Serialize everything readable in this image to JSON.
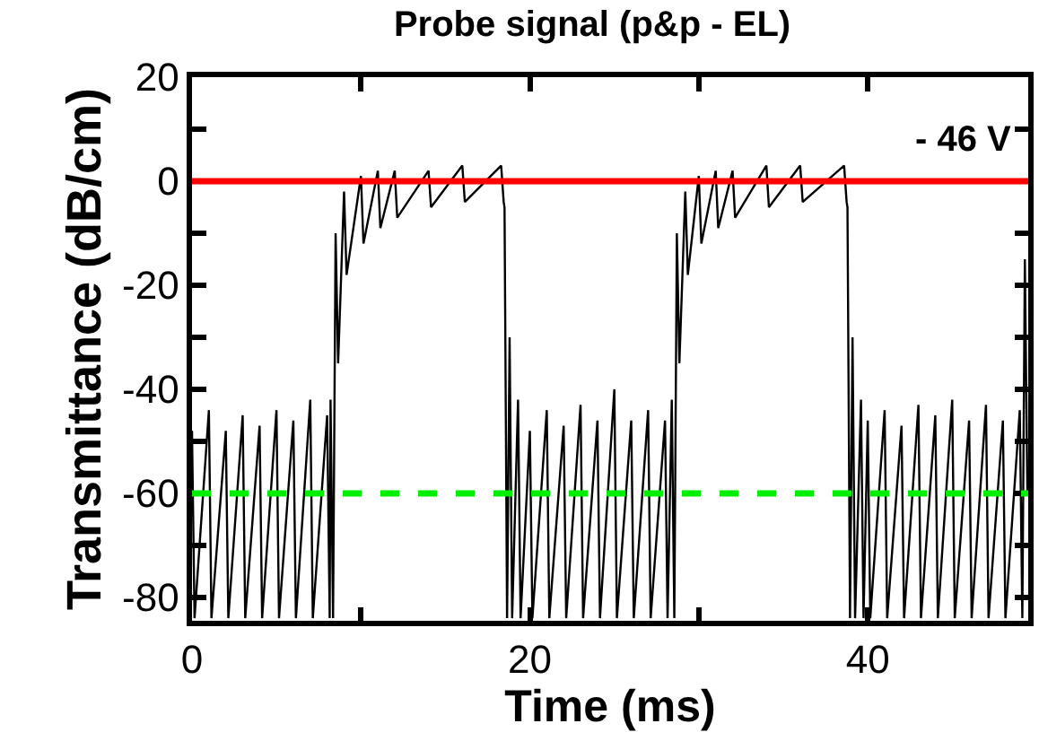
{
  "chart_data": {
    "type": "line",
    "title": "Probe signal (p&p - EL)",
    "xlabel": "Time (ms)",
    "ylabel": "Transmittance (dB/cm)",
    "x": [
      0,
      0.15,
      1,
      1.15,
      2,
      2.15,
      3,
      3.15,
      4,
      4.15,
      5,
      5.15,
      6,
      6.15,
      7,
      7.15,
      8,
      8.15,
      8.2,
      8.35,
      8.5,
      8.65,
      9,
      9.15,
      10,
      10.15,
      11,
      11.15,
      12,
      12.15,
      14,
      14.15,
      16,
      16.15,
      18.3,
      18.45,
      18.5,
      18.65,
      18.8,
      18.95,
      19.3,
      19.45,
      20,
      20.15,
      21,
      21.15,
      22,
      22.15,
      23,
      23.15,
      24,
      24.15,
      25,
      25.15,
      26,
      26.15,
      27,
      27.15,
      28,
      28.15,
      28.4,
      28.55,
      28.7,
      28.85,
      29.2,
      29.35,
      30,
      30.15,
      31,
      31.15,
      32,
      32.15,
      34,
      34.15,
      36,
      36.15,
      38.6,
      38.75,
      38.8,
      38.95,
      39.1,
      39.25,
      39.6,
      39.75,
      40,
      40.15,
      41,
      41.15,
      42,
      42.15,
      43,
      43.15,
      44,
      44.15,
      45,
      45.15,
      46,
      46.15,
      47,
      47.15,
      48,
      48.15,
      49,
      49.15,
      49.3,
      49.45
    ],
    "series": [
      {
        "color": "#000000",
        "values": [
          -48,
          -84,
          -44,
          -84,
          -48,
          -84,
          -45,
          -84,
          -47,
          -84,
          -44,
          -84,
          -46,
          -84,
          -42,
          -84,
          -45,
          -84,
          -42,
          -84,
          -10,
          -35,
          -2,
          -18,
          1,
          -12,
          2,
          -9,
          2,
          -7,
          2,
          -5,
          3,
          -4,
          3,
          -4,
          -5,
          -84,
          -30,
          -84,
          -42,
          -84,
          -48,
          -84,
          -44,
          -84,
          -47,
          -84,
          -43,
          -84,
          -46,
          -84,
          -40,
          -84,
          -46,
          -84,
          -44,
          -84,
          -46,
          -84,
          -42,
          -84,
          -10,
          -35,
          -2,
          -18,
          1,
          -12,
          2,
          -9,
          2,
          -7,
          3,
          -5,
          3,
          -4,
          3,
          -4,
          -5,
          -84,
          -30,
          -84,
          -42,
          -84,
          -46,
          -84,
          -44,
          -84,
          -47,
          -84,
          -43,
          -84,
          -45,
          -84,
          -42,
          -84,
          -46,
          -84,
          -43,
          -84,
          -46,
          -84,
          -44,
          -84,
          -15,
          -60
        ]
      }
    ],
    "xlim": [
      0,
      49.5
    ],
    "xticks": [
      0,
      {
        "value": 10,
        "label": null
      },
      20,
      {
        "value": 30,
        "label": null
      },
      40
    ],
    "ylim": [
      -84.5,
      20
    ],
    "yticks": [
      -80,
      {
        "value": -70,
        "label": null
      },
      -60,
      {
        "value": -50,
        "label": null
      },
      -40,
      {
        "value": -30,
        "label": null
      },
      -20,
      {
        "value": -10,
        "label": null
      },
      0,
      {
        "value": 10,
        "label": null
      },
      20
    ],
    "ref_lines": [
      {
        "axis": "y",
        "value": 0,
        "color": "#ff0000",
        "line_style": "solid"
      },
      {
        "axis": "y",
        "value": -60,
        "color": "#00ee00",
        "line_style": "dashed"
      }
    ],
    "annotations": [
      "- 46 V"
    ],
    "marker": "none",
    "line_style": "solid"
  }
}
